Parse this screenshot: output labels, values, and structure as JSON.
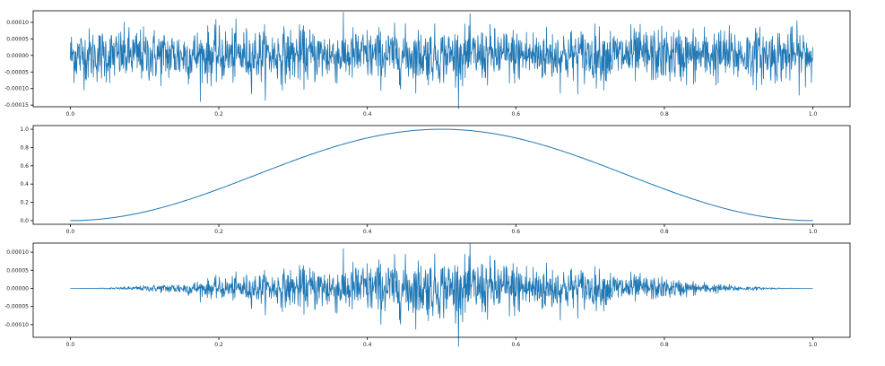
{
  "chart_data": [
    {
      "type": "line",
      "title": "",
      "xlabel": "",
      "ylabel": "",
      "xlim": [
        -0.05,
        1.05
      ],
      "ylim": [
        -0.000155,
        0.000135
      ],
      "x_ticks": [
        0.0,
        0.2,
        0.4,
        0.6,
        0.8,
        1.0
      ],
      "x_tick_labels": [
        "0.0",
        "0.2",
        "0.4",
        "0.6",
        "0.8",
        "1.0"
      ],
      "y_ticks": [
        0.0001,
        5e-05,
        0.0,
        -5e-05,
        -0.0001,
        -0.00015
      ],
      "y_tick_labels": [
        "0.00010",
        "0.00005",
        "0.00000",
        "-0.00005",
        "-0.00010",
        "-0.00015"
      ],
      "grid": false,
      "series": [
        {
          "color": "#1f77b4",
          "description": "white noise, mean 0, amplitude ~5e-5 (peaks ~1.2e-4)",
          "x": [
            0.0,
            1.0
          ],
          "std": 4e-05,
          "n_points": 2000,
          "envelope": "constant"
        }
      ]
    },
    {
      "type": "line",
      "title": "",
      "xlabel": "",
      "ylabel": "",
      "xlim": [
        -0.05,
        1.05
      ],
      "ylim": [
        -0.04,
        1.04
      ],
      "x_ticks": [
        0.0,
        0.2,
        0.4,
        0.6,
        0.8,
        1.0
      ],
      "x_tick_labels": [
        "0.0",
        "0.2",
        "0.4",
        "0.6",
        "0.8",
        "1.0"
      ],
      "y_ticks": [
        1.0,
        0.8,
        0.6,
        0.4,
        0.2,
        0.0
      ],
      "y_tick_labels": [
        "1.0",
        "0.8",
        "0.6",
        "0.4",
        "0.2",
        "0.0"
      ],
      "grid": false,
      "series": [
        {
          "color": "#1f77b4",
          "x": [
            0.0,
            0.05,
            0.1,
            0.15,
            0.2,
            0.25,
            0.3,
            0.35,
            0.4,
            0.45,
            0.5,
            0.55,
            0.6,
            0.65,
            0.7,
            0.75,
            0.8,
            0.85,
            0.9,
            0.95,
            1.0
          ],
          "y": [
            0.0,
            0.024,
            0.095,
            0.206,
            0.345,
            0.5,
            0.655,
            0.794,
            0.905,
            0.976,
            1.0,
            0.976,
            0.905,
            0.794,
            0.655,
            0.5,
            0.345,
            0.206,
            0.095,
            0.024,
            0.0
          ]
        }
      ]
    },
    {
      "type": "line",
      "title": "",
      "xlabel": "",
      "ylabel": "",
      "xlim": [
        -0.05,
        1.05
      ],
      "ylim": [
        -0.000135,
        0.000125
      ],
      "x_ticks": [
        0.0,
        0.2,
        0.4,
        0.6,
        0.8,
        1.0
      ],
      "x_tick_labels": [
        "0.0",
        "0.2",
        "0.4",
        "0.6",
        "0.8",
        "1.0"
      ],
      "y_ticks": [
        0.0001,
        5e-05,
        0.0,
        -5e-05,
        -0.0001
      ],
      "y_tick_labels": [
        "0.00010",
        "0.00005",
        "0.00000",
        "-0.00005",
        "-0.00010"
      ],
      "grid": false,
      "series": [
        {
          "color": "#1f77b4",
          "description": "noise from panel 1 multiplied by the Hann window from panel 2",
          "x": [
            0.0,
            1.0
          ],
          "std": 4e-05,
          "n_points": 2000,
          "envelope": "hann"
        }
      ]
    }
  ]
}
